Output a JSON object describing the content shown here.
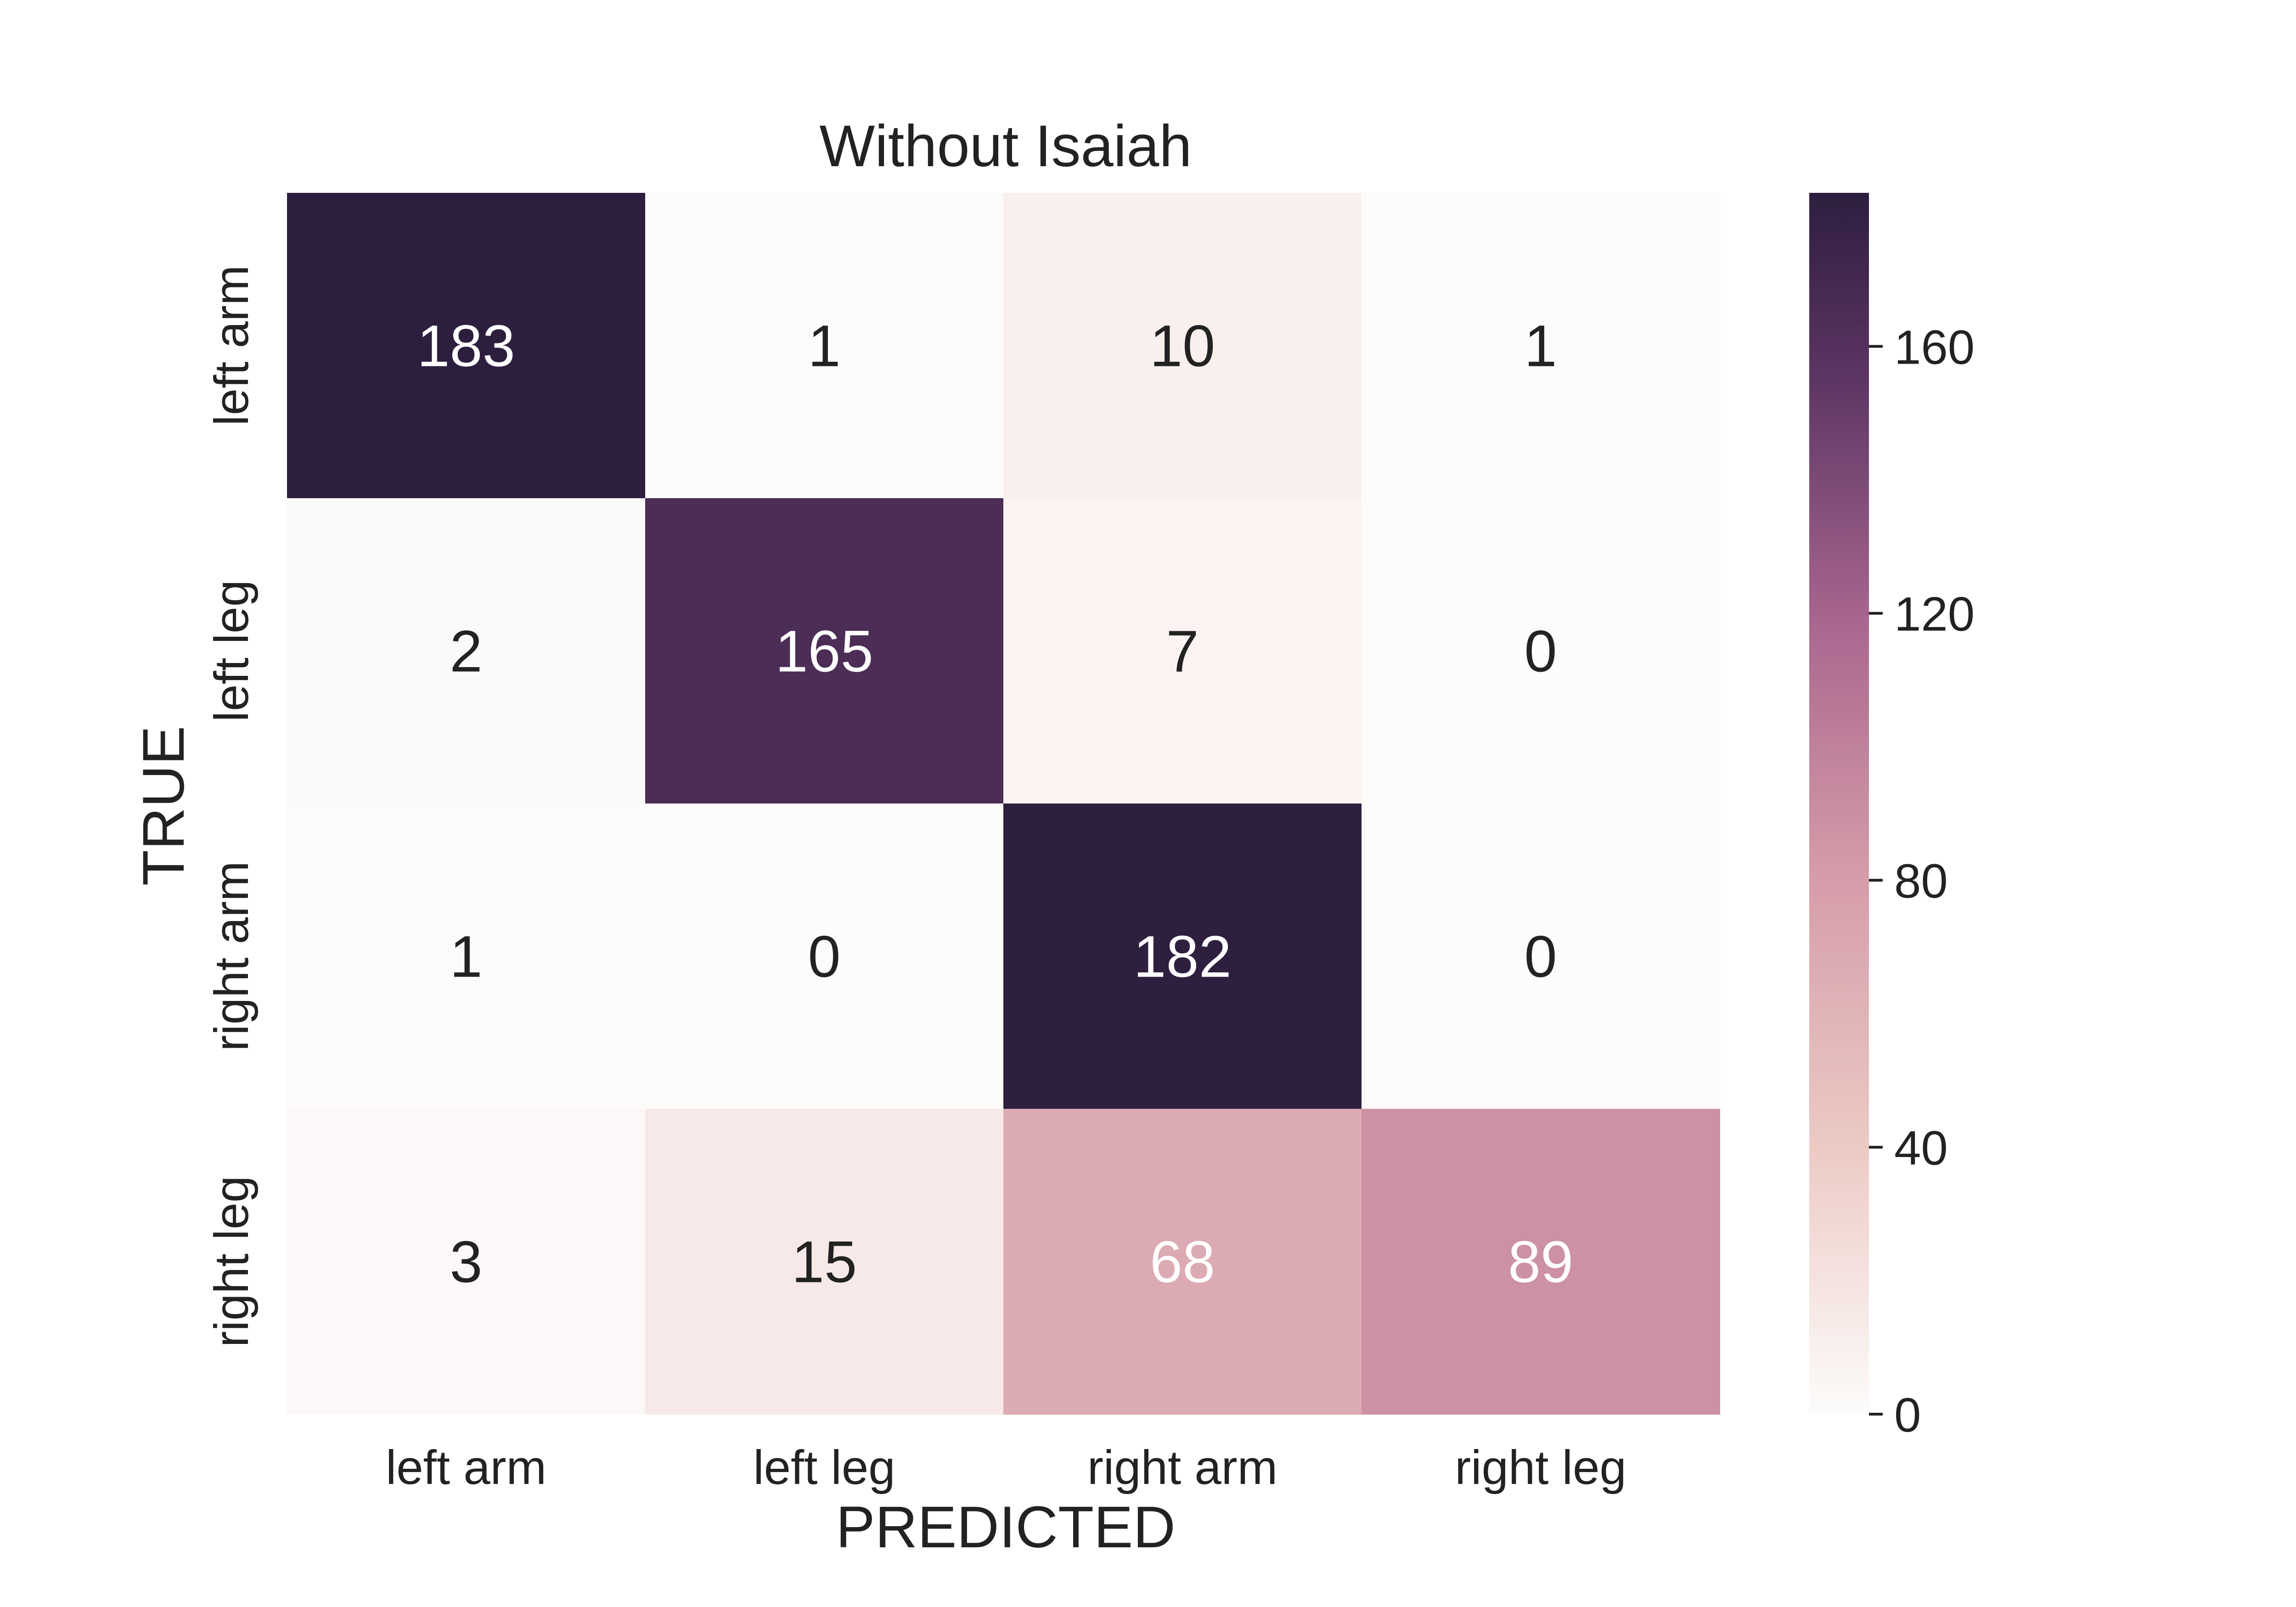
{
  "chart_data": {
    "type": "heatmap",
    "title": "Without Isaiah",
    "xlabel": "PREDICTED",
    "ylabel": "TRUE",
    "x_categories": [
      "left arm",
      "left leg",
      "right arm",
      "right leg"
    ],
    "y_categories": [
      "left arm",
      "left leg",
      "right arm",
      "right leg"
    ],
    "values": [
      [
        183,
        1,
        10,
        1
      ],
      [
        2,
        165,
        7,
        0
      ],
      [
        1,
        0,
        182,
        0
      ],
      [
        3,
        15,
        68,
        89
      ]
    ],
    "colorbar": {
      "range": [
        0,
        183
      ],
      "ticks": [
        0,
        40,
        80,
        120,
        160
      ],
      "tick_labels": [
        "0",
        "40",
        "80",
        "120",
        "160"
      ]
    },
    "colorscale": [
      {
        "stop": 0.0,
        "color": "#fdfcfb"
      },
      {
        "stop": 0.22,
        "color": "#eccac4"
      },
      {
        "stop": 0.45,
        "color": "#d49aa8"
      },
      {
        "stop": 0.65,
        "color": "#a8668e"
      },
      {
        "stop": 0.85,
        "color": "#5c3563"
      },
      {
        "stop": 1.0,
        "color": "#2d1e3e"
      }
    ],
    "grid": false,
    "legend": "colorbar-right"
  }
}
